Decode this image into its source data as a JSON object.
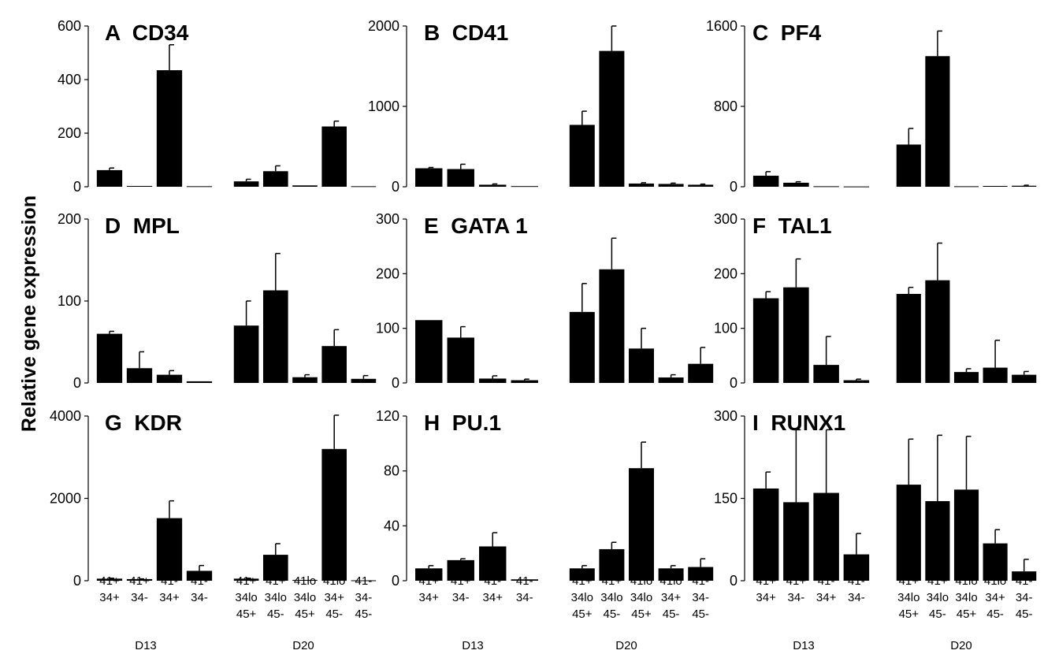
{
  "figure": {
    "ylabel": "Relative gene expression",
    "groups": [
      "D13",
      "D20"
    ],
    "cat_d13": [
      [
        "41+",
        "34+"
      ],
      [
        "41+",
        "34-"
      ],
      [
        "41-",
        "34+"
      ],
      [
        "41-",
        "34-"
      ]
    ],
    "cat_d20": [
      [
        "41+",
        "34lo",
        "45+"
      ],
      [
        "41+",
        "34lo",
        "45-"
      ],
      [
        "41lo",
        "34lo",
        "45+"
      ],
      [
        "41lo",
        "34+",
        "45-"
      ],
      [
        "41-",
        "34-",
        "45-"
      ]
    ]
  },
  "chart_data": [
    {
      "type": "bar",
      "title": "A  CD34",
      "yticks": [
        0,
        200,
        400,
        600
      ],
      "ylim": [
        0,
        600
      ],
      "series": [
        {
          "group": "D13",
          "values": [
            62,
            3,
            435,
            2
          ],
          "errors": [
            8,
            0,
            95,
            0
          ]
        },
        {
          "group": "D20",
          "values": [
            20,
            58,
            5,
            225,
            2
          ],
          "errors": [
            8,
            20,
            0,
            20,
            0
          ]
        }
      ]
    },
    {
      "type": "bar",
      "title": "B  CD41",
      "yticks": [
        0,
        1000,
        2000
      ],
      "ylim": [
        0,
        2000
      ],
      "series": [
        {
          "group": "D13",
          "values": [
            230,
            220,
            25,
            8
          ],
          "errors": [
            10,
            60,
            10,
            0
          ]
        },
        {
          "group": "D20",
          "values": [
            770,
            1690,
            40,
            35,
            25
          ],
          "errors": [
            170,
            310,
            10,
            10,
            8
          ]
        }
      ]
    },
    {
      "type": "bar",
      "title": "C  PF4",
      "yticks": [
        0,
        800,
        1600
      ],
      "ylim": [
        0,
        1600
      ],
      "series": [
        {
          "group": "D13",
          "values": [
            110,
            40,
            5,
            3
          ],
          "errors": [
            40,
            10,
            0,
            0
          ]
        },
        {
          "group": "D20",
          "values": [
            420,
            1300,
            5,
            8,
            10
          ],
          "errors": [
            160,
            250,
            0,
            0,
            5
          ]
        }
      ]
    },
    {
      "type": "bar",
      "title": "D  MPL",
      "yticks": [
        0,
        100,
        200
      ],
      "ylim": [
        0,
        200
      ],
      "series": [
        {
          "group": "D13",
          "values": [
            60,
            18,
            10,
            2
          ],
          "errors": [
            3,
            20,
            5,
            0
          ]
        },
        {
          "group": "D20",
          "values": [
            70,
            113,
            7,
            45,
            5
          ],
          "errors": [
            30,
            45,
            3,
            20,
            4
          ]
        }
      ]
    },
    {
      "type": "bar",
      "title": "E  GATA 1",
      "yticks": [
        0,
        100,
        200,
        300
      ],
      "ylim": [
        0,
        300
      ],
      "series": [
        {
          "group": "D13",
          "values": [
            115,
            83,
            8,
            5
          ],
          "errors": [
            0,
            20,
            5,
            2
          ]
        },
        {
          "group": "D20",
          "values": [
            130,
            208,
            63,
            10,
            35
          ],
          "errors": [
            52,
            57,
            37,
            5,
            30
          ]
        }
      ]
    },
    {
      "type": "bar",
      "title": "F  TAL1",
      "yticks": [
        0,
        100,
        200,
        300
      ],
      "ylim": [
        0,
        300
      ],
      "series": [
        {
          "group": "D13",
          "values": [
            155,
            175,
            33,
            5
          ],
          "errors": [
            12,
            52,
            52,
            2
          ]
        },
        {
          "group": "D20",
          "values": [
            163,
            188,
            20,
            28,
            15
          ],
          "errors": [
            12,
            68,
            6,
            50,
            6
          ]
        }
      ]
    },
    {
      "type": "bar",
      "title": "G  KDR",
      "yticks": [
        0,
        2000,
        4000
      ],
      "ylim": [
        0,
        4000
      ],
      "series": [
        {
          "group": "D13",
          "values": [
            50,
            40,
            1520,
            240
          ],
          "errors": [
            10,
            5,
            420,
            130
          ]
        },
        {
          "group": "D20",
          "values": [
            50,
            630,
            20,
            3200,
            10
          ],
          "errors": [
            10,
            270,
            0,
            820,
            0
          ]
        }
      ]
    },
    {
      "type": "bar",
      "title": "H  PU.1",
      "yticks": [
        0,
        40,
        80,
        120
      ],
      "ylim": [
        0,
        120
      ],
      "series": [
        {
          "group": "D13",
          "values": [
            9,
            15,
            25,
            1
          ],
          "errors": [
            2,
            1,
            10,
            0
          ]
        },
        {
          "group": "D20",
          "values": [
            9,
            23,
            82,
            9,
            10
          ],
          "errors": [
            2,
            5,
            19,
            2,
            6
          ]
        }
      ]
    },
    {
      "type": "bar",
      "title": "I  RUNX1",
      "yticks": [
        0,
        150,
        300
      ],
      "ylim": [
        0,
        300
      ],
      "series": [
        {
          "group": "D13",
          "values": [
            168,
            143,
            160,
            48
          ],
          "errors": [
            30,
            132,
            115,
            38
          ]
        },
        {
          "group": "D20",
          "values": [
            175,
            145,
            166,
            68,
            17
          ],
          "errors": [
            83,
            120,
            97,
            25,
            22
          ]
        }
      ]
    }
  ]
}
